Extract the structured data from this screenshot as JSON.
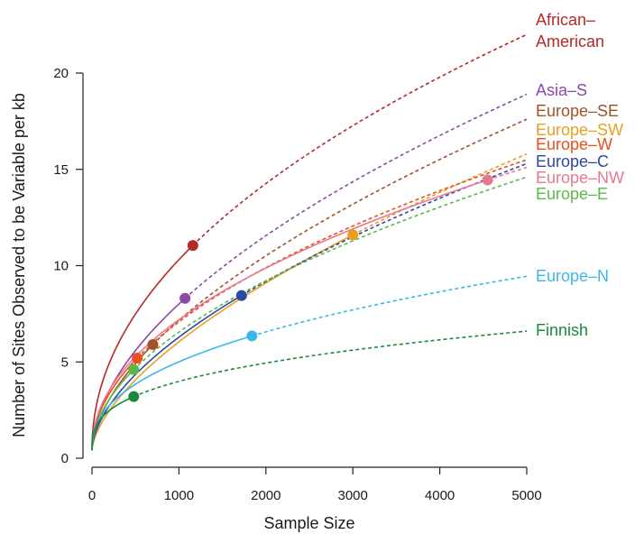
{
  "chart_data": {
    "type": "line",
    "title": "",
    "xlabel": "Sample Size",
    "ylabel": "Number of Sites Observed to be Variable per kb",
    "xlim": [
      0,
      5000
    ],
    "ylim": [
      0,
      20
    ],
    "x_ticks": [
      "0",
      "1000",
      "2000",
      "3000",
      "4000",
      "5000"
    ],
    "y_ticks": [
      "0",
      "5",
      "10",
      "15",
      "20"
    ],
    "grid": false,
    "legend": "right, labels placed at curve ends",
    "series": [
      {
        "name": "African–American",
        "label_lines": [
          "African–",
          "American"
        ],
        "color": "#b22a2a",
        "observed_n": 1160,
        "observed_y": 11.05,
        "y_at_5000": 22.0
      },
      {
        "name": "Asia–S",
        "label_lines": [
          "Asia–S"
        ],
        "color": "#8b4aa8",
        "observed_n": 1070,
        "observed_y": 8.3,
        "y_at_5000": 18.9
      },
      {
        "name": "Europe–SE",
        "label_lines": [
          "Europe–SE"
        ],
        "color": "#a0522d",
        "observed_n": 700,
        "observed_y": 5.9,
        "y_at_5000": 17.6
      },
      {
        "name": "Europe–SW",
        "label_lines": [
          "Europe–SW"
        ],
        "color": "#e8a020",
        "observed_n": 3000,
        "observed_y": 11.6,
        "y_at_5000": 15.8
      },
      {
        "name": "Europe–W",
        "label_lines": [
          "Europe–W"
        ],
        "color": "#e8501e",
        "observed_n": 520,
        "observed_y": 5.2,
        "y_at_5000": 15.5
      },
      {
        "name": "Europe–C",
        "label_lines": [
          "Europe–C"
        ],
        "color": "#2c4aa0",
        "observed_n": 1720,
        "observed_y": 8.45,
        "y_at_5000": 15.3
      },
      {
        "name": "Europe–NW",
        "label_lines": [
          "Europe–NW"
        ],
        "color": "#e87890",
        "observed_n": 4550,
        "observed_y": 14.45,
        "y_at_5000": 15.1
      },
      {
        "name": "Europe–E",
        "label_lines": [
          "Europe–E"
        ],
        "color": "#5ab84a",
        "observed_n": 480,
        "observed_y": 4.6,
        "y_at_5000": 14.6
      },
      {
        "name": "Europe–N",
        "label_lines": [
          "Europe–N"
        ],
        "color": "#3ab8e8",
        "observed_n": 1840,
        "observed_y": 6.35,
        "y_at_5000": 9.45
      },
      {
        "name": "Finnish",
        "label_lines": [
          "Finnish"
        ],
        "color": "#1a8a3a",
        "observed_n": 480,
        "observed_y": 3.2,
        "y_at_5000": 6.6
      }
    ]
  }
}
